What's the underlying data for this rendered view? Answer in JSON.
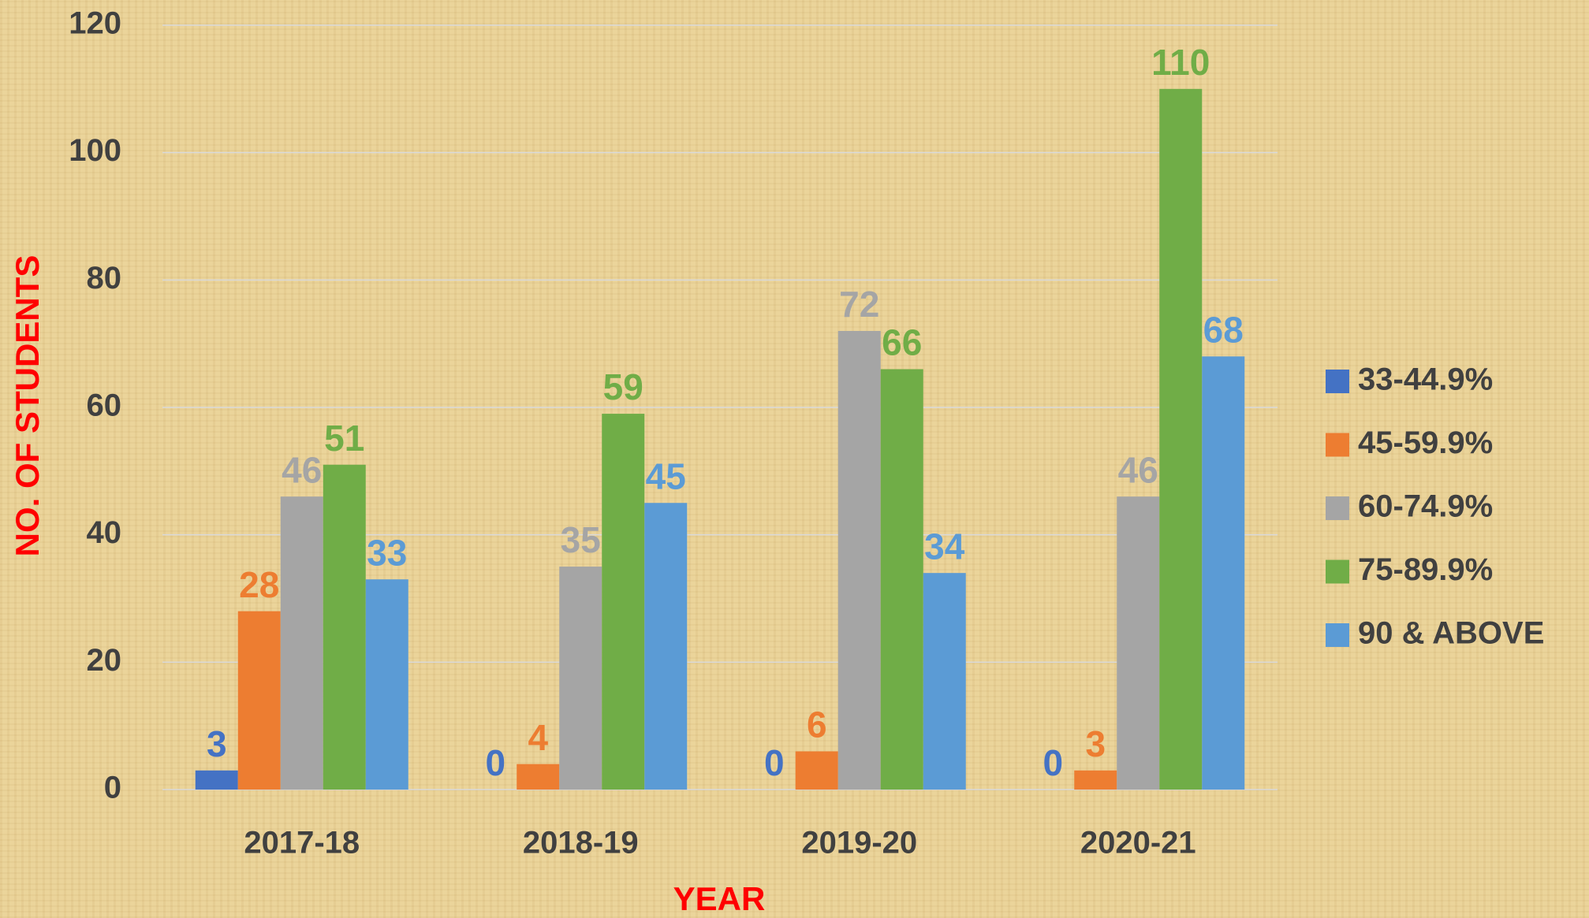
{
  "chart_data": {
    "type": "bar",
    "x_label": "YEAR",
    "y_label": "NO. OF STUDENTS",
    "categories": [
      "2017-18",
      "2018-19",
      "2019-20",
      "2020-21"
    ],
    "series": [
      {
        "name": "33-44.9%",
        "color": "#4472c4",
        "values": [
          3,
          0,
          0,
          0
        ]
      },
      {
        "name": "45-59.9%",
        "color": "#ed7d31",
        "values": [
          28,
          4,
          6,
          3
        ]
      },
      {
        "name": "60-74.9%",
        "color": "#a5a5a5",
        "values": [
          46,
          35,
          72,
          46
        ]
      },
      {
        "name": "75-89.9%",
        "color": "#70ad47",
        "values": [
          51,
          59,
          66,
          110
        ]
      },
      {
        "name": "90 & ABOVE",
        "color": "#5b9bd5",
        "values": [
          33,
          45,
          34,
          68
        ]
      }
    ],
    "ylim": [
      0,
      120
    ],
    "yticks": [
      0,
      20,
      40,
      60,
      80,
      100,
      120
    ],
    "grid": true,
    "legend": "right"
  }
}
